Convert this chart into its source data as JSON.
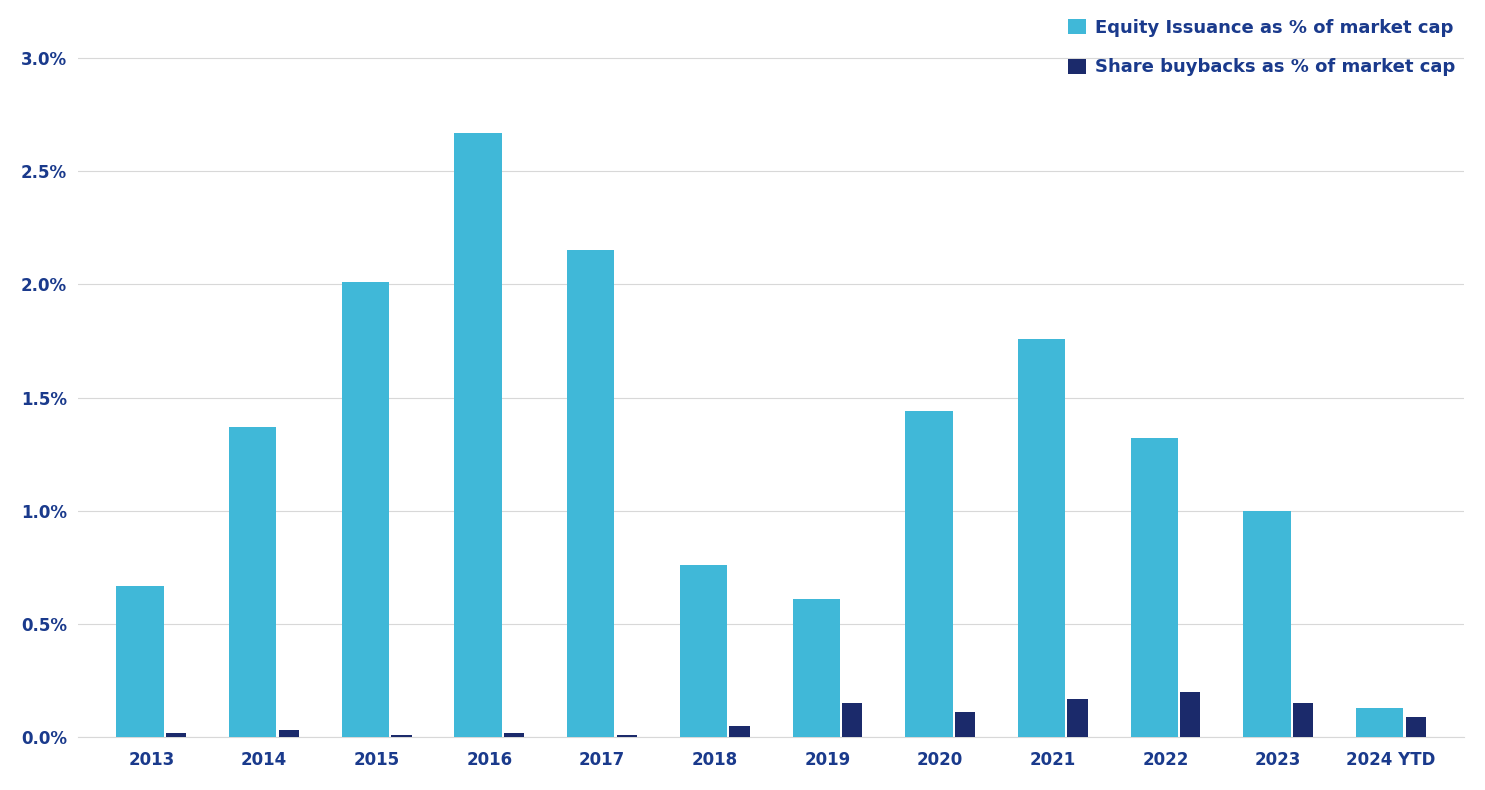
{
  "years": [
    "2013",
    "2014",
    "2015",
    "2016",
    "2017",
    "2018",
    "2019",
    "2020",
    "2021",
    "2022",
    "2023",
    "2024 YTD"
  ],
  "equity_issuance": [
    0.0067,
    0.0137,
    0.0201,
    0.0267,
    0.0215,
    0.0076,
    0.0061,
    0.0144,
    0.0176,
    0.0132,
    0.01,
    0.0013
  ],
  "share_buybacks": [
    0.0002,
    0.0003,
    0.0001,
    0.0002,
    0.0001,
    0.0005,
    0.0015,
    0.0011,
    0.0017,
    0.002,
    0.0015,
    0.0009
  ],
  "equity_color": "#40B8D8",
  "buyback_color": "#1B2A6B",
  "equity_bar_width": 0.42,
  "buyback_bar_width": 0.18,
  "ylim": [
    0,
    0.0315
  ],
  "yticks": [
    0.0,
    0.005,
    0.01,
    0.015,
    0.02,
    0.025,
    0.03
  ],
  "ytick_labels": [
    "0.0%",
    "0.5%",
    "1.0%",
    "1.5%",
    "2.0%",
    "2.5%",
    "3.0%"
  ],
  "legend_equity": "Equity Issuance as % of market cap",
  "legend_buyback": "Share buybacks as % of market cap",
  "legend_text_color": "#1A3A8C",
  "tick_color": "#1A3A8C",
  "background_color": "#ffffff",
  "grid_color": "#d8d8d8",
  "grid_linewidth": 0.8,
  "xlabel_fontsize": 12,
  "ylabel_fontsize": 12,
  "legend_fontsize": 13
}
